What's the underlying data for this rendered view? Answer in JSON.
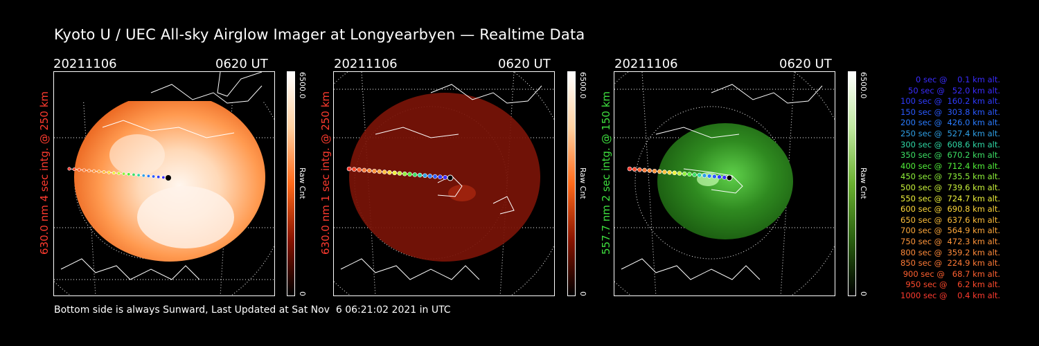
{
  "title": "Kyoto U / UEC All-sky Airglow Imager at Longyearbyen — Realtime Data",
  "panels": [
    {
      "date": "20211106",
      "time": "0620 UT",
      "label": "630.0 nm 4 sec intg. @ 250 km",
      "label_color": "#ff3b2f",
      "cbar_max": "6500.0",
      "cbar_unit": "Raw Cnt",
      "cbar_min": "0",
      "theme": "orange"
    },
    {
      "date": "20211106",
      "time": "0620 UT",
      "label": "630.0 nm 1 sec intg. @ 250 km",
      "label_color": "#ff3b2f",
      "cbar_max": "6500.0",
      "cbar_unit": "Raw Cnt",
      "cbar_min": "0",
      "theme": "red"
    },
    {
      "date": "20211106",
      "time": "0620 UT",
      "label": "557.7 nm 2 sec intg. @ 150 km",
      "label_color": "#3fe03f",
      "cbar_max": "6500.0",
      "cbar_unit": "Raw Cnt",
      "cbar_min": "0",
      "theme": "green"
    }
  ],
  "legend": [
    {
      "text": "0 sec @    0.1 km alt.",
      "color": "#3a2cff"
    },
    {
      "text": "50 sec @   52.0 km alt.",
      "color": "#3a2cff"
    },
    {
      "text": "100 sec @  160.2 km alt.",
      "color": "#2f3cff"
    },
    {
      "text": "150 sec @  303.8 km alt.",
      "color": "#2a5aff"
    },
    {
      "text": "200 sec @  426.0 km alt.",
      "color": "#2a7cff"
    },
    {
      "text": "250 sec @  527.4 km alt.",
      "color": "#2fa0e6"
    },
    {
      "text": "300 sec @  608.6 km alt.",
      "color": "#2fd8a6"
    },
    {
      "text": "350 sec @  670.2 km alt.",
      "color": "#3de065"
    },
    {
      "text": "400 sec @  712.4 km alt.",
      "color": "#52f03a"
    },
    {
      "text": "450 sec @  735.5 km alt.",
      "color": "#8ef23a"
    },
    {
      "text": "500 sec @  739.6 km alt.",
      "color": "#c8f23a"
    },
    {
      "text": "550 sec @  724.7 km alt.",
      "color": "#eef23a"
    },
    {
      "text": "600 sec @  690.8 km alt.",
      "color": "#ffd93a"
    },
    {
      "text": "650 sec @  637.6 km alt.",
      "color": "#ffbf3a"
    },
    {
      "text": "700 sec @  564.9 km alt.",
      "color": "#ffa83a"
    },
    {
      "text": "750 sec @  472.3 km alt.",
      "color": "#ff953a"
    },
    {
      "text": "800 sec @  359.2 km alt.",
      "color": "#ff8a3a"
    },
    {
      "text": "850 sec @  224.9 km alt.",
      "color": "#ff7a36"
    },
    {
      "text": "900 sec @   68.7 km alt.",
      "color": "#ff6030"
    },
    {
      "text": "950 sec @    6.2 km alt.",
      "color": "#ff4a2c"
    },
    {
      "text": "1000 sec @    0.4 km alt.",
      "color": "#ff3b2f"
    }
  ],
  "footer": "Bottom side is always Sunward, Last Updated at Sat Nov  6 06:21:02 2021 in UTC",
  "colors": {
    "orange": "#ff6a1a",
    "red": "#a01a0a",
    "green": "#3fb030"
  }
}
